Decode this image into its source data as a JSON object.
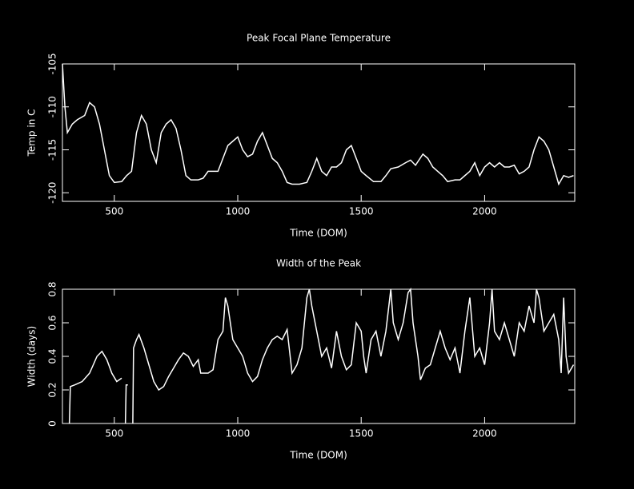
{
  "chart_data": [
    {
      "type": "line",
      "title": "Peak Focal Plane Temperature",
      "xlabel": "Time (DOM)",
      "ylabel": "Temp in C",
      "xlim": [
        290,
        2365
      ],
      "xticks": [
        500,
        1000,
        1500,
        2000
      ],
      "ylim": [
        -121,
        -105
      ],
      "yticks": [
        -120,
        -115,
        -110,
        -105
      ],
      "series": [
        {
          "color": "#ffffff",
          "x": [
            290,
            300,
            310,
            330,
            350,
            380,
            400,
            420,
            440,
            460,
            480,
            500,
            530,
            550,
            570,
            590,
            610,
            630,
            650,
            670,
            690,
            710,
            730,
            750,
            770,
            790,
            810,
            840,
            860,
            880,
            900,
            920,
            940,
            960,
            980,
            1000,
            1020,
            1040,
            1060,
            1080,
            1100,
            1120,
            1140,
            1160,
            1180,
            1200,
            1220,
            1250,
            1280,
            1300,
            1320,
            1340,
            1360,
            1380,
            1400,
            1420,
            1440,
            1460,
            1480,
            1500,
            1520,
            1550,
            1580,
            1600,
            1620,
            1650,
            1680,
            1700,
            1720,
            1750,
            1770,
            1790,
            1810,
            1830,
            1850,
            1880,
            1900,
            1920,
            1940,
            1960,
            1980,
            2000,
            2020,
            2040,
            2060,
            2080,
            2100,
            2120,
            2140,
            2160,
            2180,
            2200,
            2220,
            2240,
            2260,
            2280,
            2300,
            2320,
            2340,
            2360
          ],
          "values": [
            -105,
            -110,
            -113,
            -112,
            -111.5,
            -111,
            -109.5,
            -110,
            -112,
            -115,
            -118,
            -118.8,
            -118.7,
            -118,
            -117.5,
            -113,
            -111,
            -112,
            -115,
            -116.5,
            -113,
            -112,
            -111.5,
            -112.5,
            -115,
            -118,
            -118.5,
            -118.5,
            -118.3,
            -117.5,
            -117.5,
            -117.5,
            -116,
            -114.5,
            -114,
            -113.5,
            -115,
            -115.8,
            -115.5,
            -114,
            -113,
            -114.5,
            -116,
            -116.5,
            -117.5,
            -118.8,
            -119,
            -119,
            -118.8,
            -117.5,
            -116,
            -117.5,
            -118,
            -117,
            -117,
            -116.5,
            -115,
            -114.5,
            -116,
            -117.5,
            -118,
            -118.7,
            -118.7,
            -118,
            -117.2,
            -117,
            -116.5,
            -116.2,
            -116.8,
            -115.5,
            -116,
            -117,
            -117.5,
            -118,
            -118.7,
            -118.5,
            -118.5,
            -118,
            -117.5,
            -116.5,
            -118,
            -117,
            -116.5,
            -117,
            -116.5,
            -117,
            -117,
            -116.8,
            -117.8,
            -117.5,
            -117,
            -115,
            -113.5,
            -114,
            -115,
            -117,
            -119,
            -118,
            -118.2,
            -118
          ]
        }
      ]
    },
    {
      "type": "line",
      "title": "Width of the Peak",
      "xlabel": "Time (DOM)",
      "ylabel": "Width (days)",
      "xlim": [
        290,
        2365
      ],
      "xticks": [
        500,
        1000,
        1500,
        2000
      ],
      "ylim": [
        0,
        0.8
      ],
      "yticks": [
        0,
        0.2,
        0.4,
        0.6,
        0.8
      ],
      "series": [
        {
          "color": "#ffffff",
          "x": [
            318,
            322,
            340,
            370,
            400,
            430,
            450,
            470,
            490,
            510,
            520,
            530,
            null,
            545,
            548,
            555,
            null,
            575,
            578,
            590,
            600,
            620,
            640,
            660,
            680,
            700,
            720,
            740,
            760,
            780,
            800,
            820,
            840,
            850,
            880,
            900,
            920,
            940,
            950,
            960,
            980,
            1000,
            1020,
            1040,
            1060,
            1080,
            1100,
            1120,
            1140,
            1160,
            1180,
            1200,
            1220,
            1240,
            1260,
            1280,
            1290,
            1300,
            1320,
            1340,
            1360,
            1380,
            1400,
            1420,
            1440,
            1460,
            1480,
            1500,
            1510,
            1520,
            1540,
            1560,
            1580,
            1600,
            1620,
            1630,
            1650,
            1670,
            1690,
            1700,
            1710,
            1730,
            1740,
            1760,
            1780,
            1800,
            1820,
            1840,
            1860,
            1880,
            1900,
            1920,
            1940,
            1960,
            1980,
            2000,
            2020,
            2030,
            2040,
            2060,
            2080,
            2100,
            2120,
            2140,
            2160,
            2180,
            2200,
            2210,
            2220,
            2240,
            2260,
            2280,
            2300,
            2310,
            2320,
            2330,
            2340,
            2360
          ],
          "values": [
            0,
            0.22,
            0.23,
            0.25,
            0.3,
            0.4,
            0.43,
            0.38,
            0.3,
            0.25,
            0.26,
            0.27,
            null,
            0,
            0.23,
            0.23,
            null,
            0,
            0.45,
            0.5,
            0.53,
            0.45,
            0.35,
            0.25,
            0.2,
            0.22,
            0.28,
            0.33,
            0.38,
            0.42,
            0.4,
            0.34,
            0.38,
            0.3,
            0.3,
            0.32,
            0.5,
            0.55,
            0.75,
            0.7,
            0.5,
            0.45,
            0.4,
            0.3,
            0.25,
            0.28,
            0.38,
            0.45,
            0.5,
            0.52,
            0.5,
            0.56,
            0.3,
            0.35,
            0.45,
            0.75,
            0.8,
            0.7,
            0.55,
            0.4,
            0.45,
            0.33,
            0.55,
            0.4,
            0.32,
            0.35,
            0.6,
            0.55,
            0.4,
            0.3,
            0.5,
            0.55,
            0.4,
            0.55,
            0.8,
            0.6,
            0.5,
            0.6,
            0.78,
            0.8,
            0.6,
            0.4,
            0.26,
            0.33,
            0.35,
            0.45,
            0.55,
            0.45,
            0.38,
            0.45,
            0.3,
            0.55,
            0.75,
            0.4,
            0.45,
            0.35,
            0.6,
            0.8,
            0.55,
            0.5,
            0.6,
            0.5,
            0.4,
            0.6,
            0.55,
            0.7,
            0.6,
            0.8,
            0.75,
            0.55,
            0.6,
            0.65,
            0.5,
            0.3,
            0.75,
            0.4,
            0.3,
            0.35
          ]
        }
      ]
    }
  ]
}
